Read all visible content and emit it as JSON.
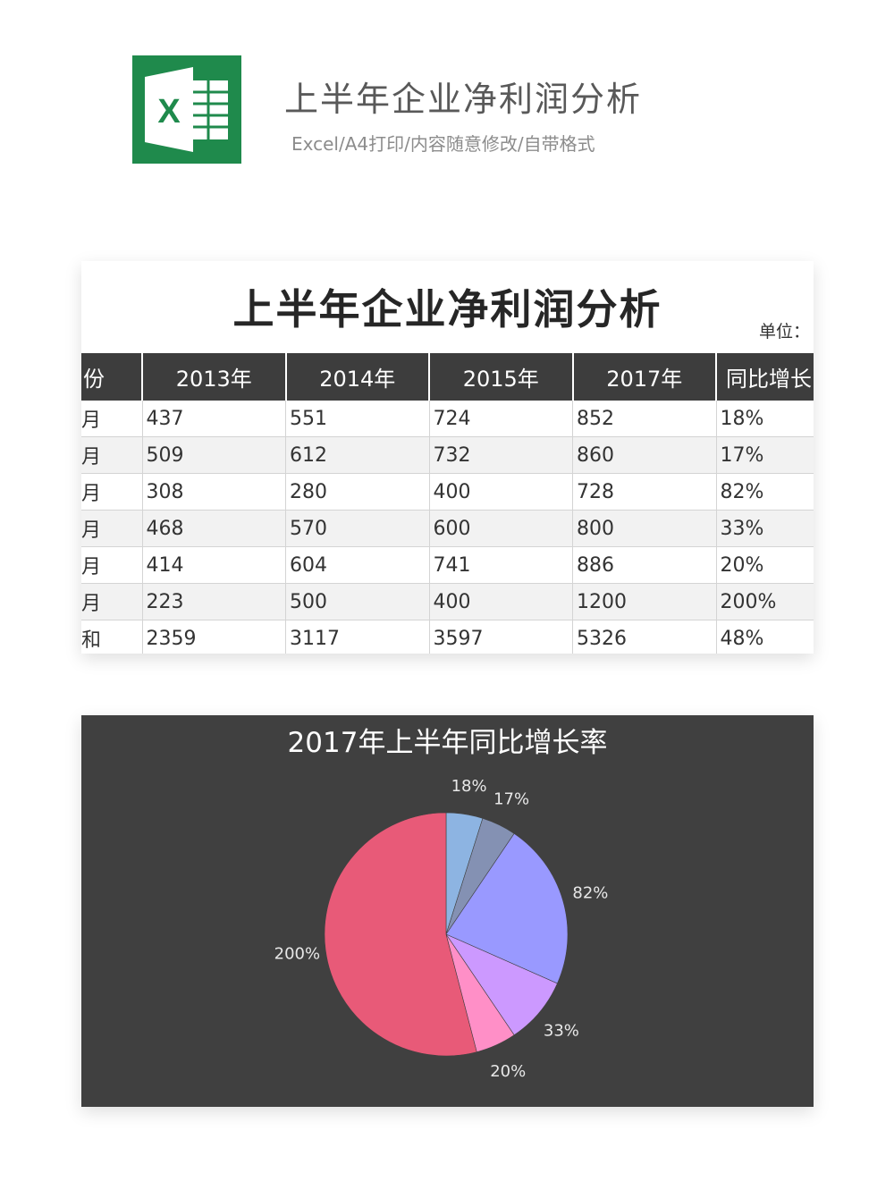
{
  "header": {
    "title": "上半年企业净利润分析",
    "subtitle": "Excel/A4打印/内容随意修改/自带格式",
    "logo_letter": "X",
    "logo_color": "#1f8a4c"
  },
  "sheet": {
    "title": "上半年企业净利润分析",
    "unit_label": "单位：",
    "columns": [
      "份",
      "2013年",
      "2014年",
      "2015年",
      "2017年",
      "同比增长"
    ],
    "rows": [
      [
        "月",
        "437",
        "551",
        "724",
        "852",
        "18%"
      ],
      [
        "月",
        "509",
        "612",
        "732",
        "860",
        "17%"
      ],
      [
        "月",
        "308",
        "280",
        "400",
        "728",
        "82%"
      ],
      [
        "月",
        "468",
        "570",
        "600",
        "800",
        "33%"
      ],
      [
        "月",
        "414",
        "604",
        "741",
        "886",
        "20%"
      ],
      [
        "月",
        "223",
        "500",
        "400",
        "1200",
        "200%"
      ],
      [
        "和",
        "2359",
        "3117",
        "3597",
        "5326",
        "48%"
      ]
    ],
    "header_color": "#3d3d3d",
    "stripe_color": "#f2f2f2"
  },
  "chart_data": {
    "type": "pie",
    "title": "2017年上半年同比增长率",
    "values": [
      18,
      17,
      82,
      33,
      20,
      200
    ],
    "labels": [
      "18%",
      "17%",
      "82%",
      "33%",
      "20%",
      "200%"
    ],
    "colors": [
      "#8db4e2",
      "#8491b3",
      "#9999ff",
      "#cc99ff",
      "#ff8fc7",
      "#e85a78"
    ],
    "background": "#404040"
  }
}
